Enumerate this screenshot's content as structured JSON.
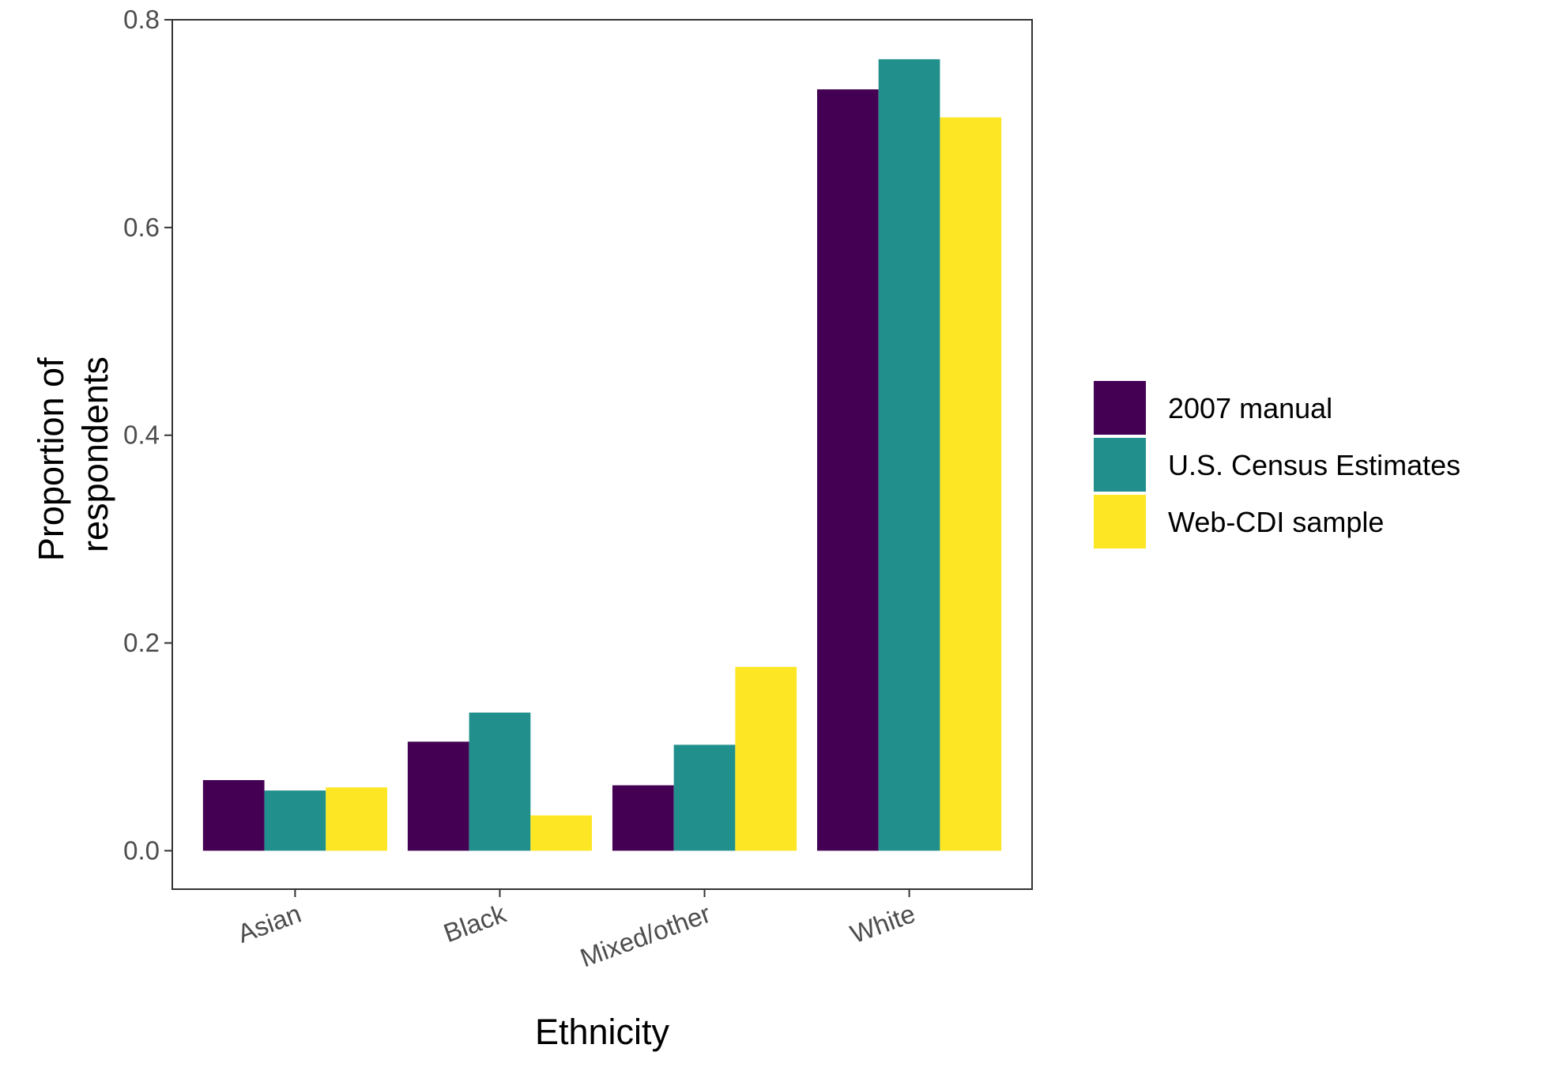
{
  "chart_data": {
    "type": "bar",
    "title": "",
    "xlabel": "Ethnicity",
    "ylabel_lines": [
      "Proportion of",
      "respondents"
    ],
    "categories": [
      "Asian",
      "Black",
      "Mixed/other",
      "White"
    ],
    "series": [
      {
        "name": "2007 manual",
        "color": "#440154",
        "values": [
          0.068,
          0.105,
          0.063,
          0.733
        ]
      },
      {
        "name": "U.S. Census Estimates",
        "color": "#21908C",
        "values": [
          0.058,
          0.133,
          0.102,
          0.762
        ]
      },
      {
        "name": "Web-CDI sample",
        "color": "#FDE725",
        "values": [
          0.061,
          0.034,
          0.177,
          0.706
        ]
      }
    ],
    "yticks": [
      "0.0",
      "0.2",
      "0.4",
      "0.6",
      "0.8"
    ],
    "ylim": [
      -0.037,
      0.8
    ],
    "grid": false,
    "legend_position": "right"
  }
}
